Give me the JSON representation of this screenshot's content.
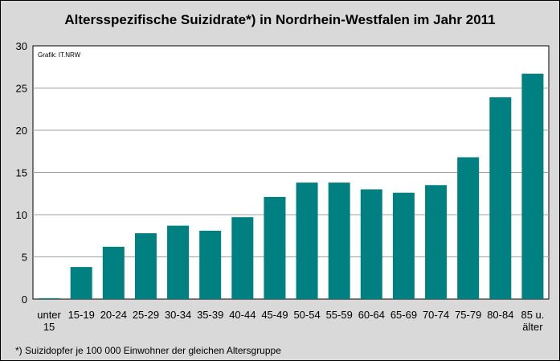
{
  "chart_data": {
    "type": "bar",
    "title": "Altersspezifische Suizidrate*) in Nordrhein-Westfalen im Jahr 2011",
    "source_label": "Grafik: IT.NRW",
    "footnote": "*) Suizidopfer je 100 000 Einwohner der gleichen Altersgruppe",
    "categories": [
      "unter 15",
      "15-19",
      "20-24",
      "25-29",
      "30-34",
      "35-39",
      "40-44",
      "45-49",
      "50-54",
      "55-59",
      "60-64",
      "65-69",
      "70-74",
      "75-79",
      "80-84",
      "85 u. älter"
    ],
    "category_lines": [
      [
        "unter",
        "15"
      ],
      [
        "15-19"
      ],
      [
        "20-24"
      ],
      [
        "25-29"
      ],
      [
        "30-34"
      ],
      [
        "35-39"
      ],
      [
        "40-44"
      ],
      [
        "45-49"
      ],
      [
        "50-54"
      ],
      [
        "55-59"
      ],
      [
        "60-64"
      ],
      [
        "65-69"
      ],
      [
        "70-74"
      ],
      [
        "75-79"
      ],
      [
        "80-84"
      ],
      [
        "85 u.",
        "älter"
      ]
    ],
    "values": [
      0.1,
      3.8,
      6.2,
      7.8,
      8.7,
      8.1,
      9.7,
      12.1,
      13.8,
      13.8,
      13.0,
      12.6,
      13.5,
      16.8,
      23.9,
      26.7
    ],
    "ylim": [
      0,
      30
    ],
    "yticks": [
      0,
      5,
      10,
      15,
      20,
      25,
      30
    ],
    "grid": true,
    "xlabel": "",
    "ylabel": "",
    "colors": {
      "bar": "#008080",
      "plot_background": "#ffffff",
      "outer_background": "#d9d9d9",
      "gridline": "#a0a0a0",
      "border": "#000000"
    }
  }
}
